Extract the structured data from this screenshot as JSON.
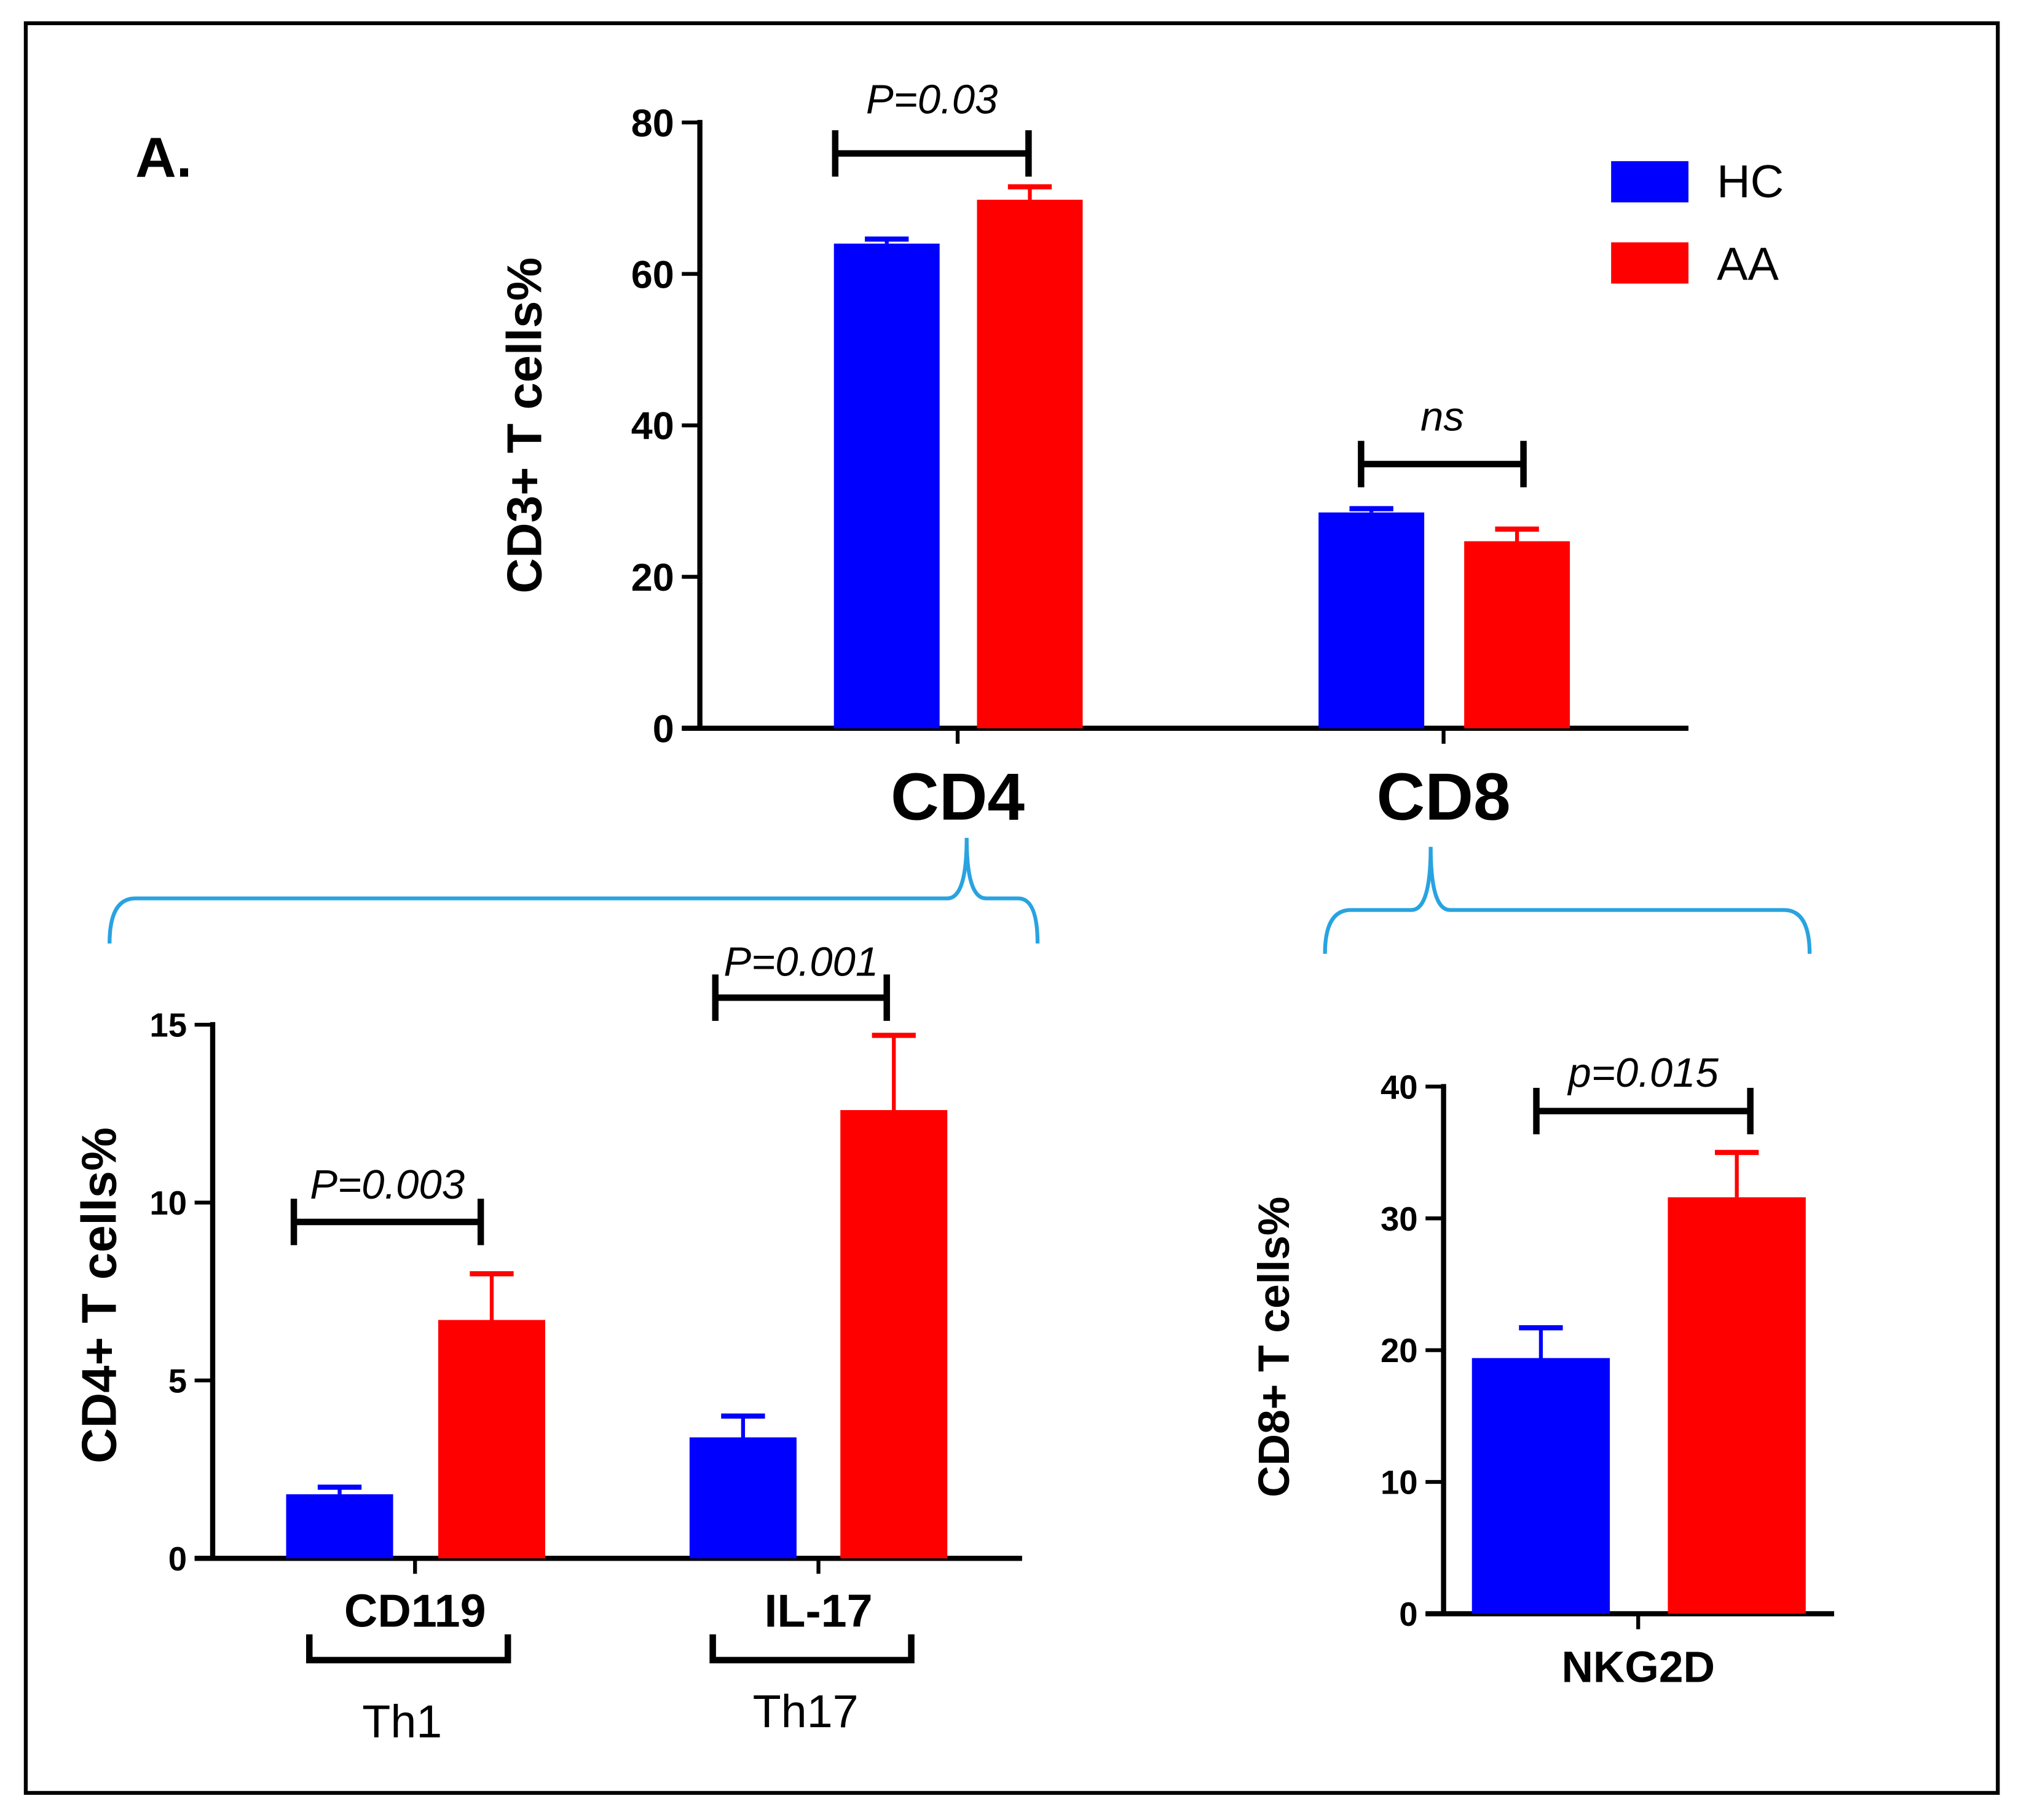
{
  "panel_label": "A.",
  "colors": {
    "HC": "#0000ff",
    "AA": "#ff0000",
    "bracket": "#29a3e0"
  },
  "legend": [
    "HC",
    "AA"
  ],
  "chart_data": [
    {
      "type": "bar",
      "ylabel": "CD3+ T cells%",
      "ylim": [
        0,
        80
      ],
      "yticks": [
        "0",
        "20",
        "40",
        "60",
        "80"
      ],
      "categories": [
        "CD4",
        "CD8"
      ],
      "series": [
        {
          "name": "HC",
          "values": [
            64,
            28.5
          ],
          "errors": [
            0.6,
            0.5
          ]
        },
        {
          "name": "AA",
          "values": [
            69.8,
            24.7
          ],
          "errors": [
            1.7,
            1.6
          ]
        }
      ],
      "annotations": [
        "P=0.03",
        "ns"
      ]
    },
    {
      "type": "bar",
      "ylabel": "CD4+ T cells%",
      "ylim": [
        0,
        15
      ],
      "yticks": [
        "0",
        "5",
        "10",
        "15"
      ],
      "categories": [
        "CD119",
        "IL-17"
      ],
      "groups": [
        "Th1",
        "Th17"
      ],
      "series": [
        {
          "name": "HC",
          "values": [
            1.8,
            3.4
          ],
          "errors": [
            0.2,
            0.6
          ]
        },
        {
          "name": "AA",
          "values": [
            6.7,
            12.6
          ],
          "errors": [
            1.3,
            2.1
          ]
        }
      ],
      "annotations": [
        "P=0.003",
        "P=0.001"
      ]
    },
    {
      "type": "bar",
      "ylabel": "CD8+ T cells%",
      "ylim": [
        0,
        40
      ],
      "yticks": [
        "0",
        "10",
        "20",
        "30",
        "40"
      ],
      "categories": [
        "NKG2D"
      ],
      "series": [
        {
          "name": "HC",
          "values": [
            19.4
          ],
          "errors": [
            2.3
          ]
        },
        {
          "name": "AA",
          "values": [
            31.6
          ],
          "errors": [
            3.4
          ]
        }
      ],
      "annotations": [
        "p=0.015"
      ]
    }
  ]
}
